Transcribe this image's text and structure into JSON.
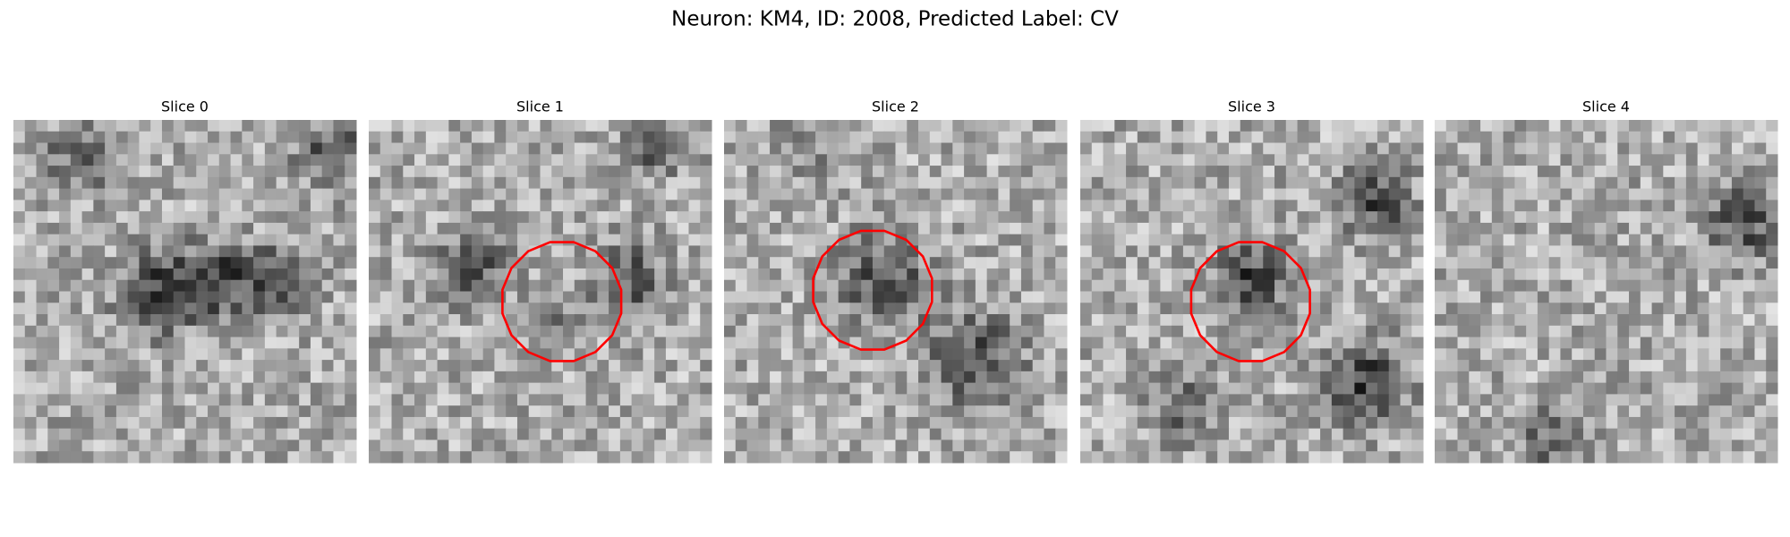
{
  "title": "Neuron: KM4, ID: 2008, Predicted Label: CV",
  "panels": [
    {
      "title": "Slice 0"
    },
    {
      "title": "Slice 1"
    },
    {
      "title": "Slice 2"
    },
    {
      "title": "Slice 3"
    },
    {
      "title": "Slice 4"
    }
  ]
}
